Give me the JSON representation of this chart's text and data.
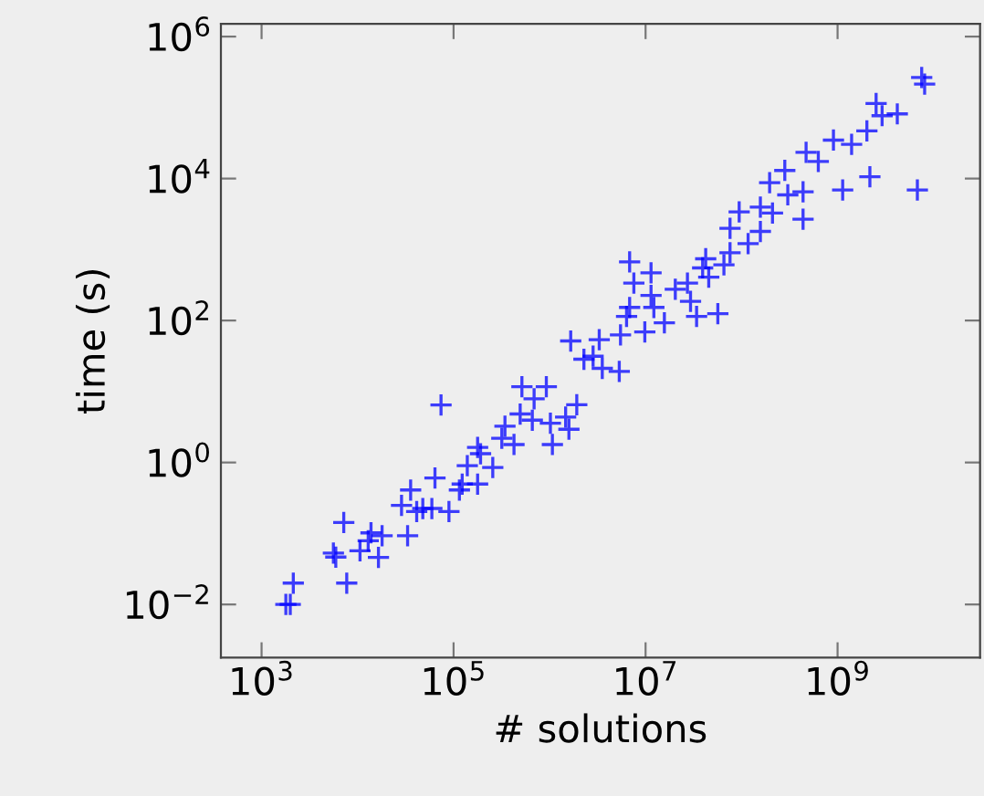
{
  "chart_data": {
    "type": "scatter",
    "xlabel": "# solutions",
    "ylabel": "time (s)",
    "log": "xy",
    "marker": "cross",
    "grid": false,
    "xlim": [
      377,
      30500000000.0
    ],
    "ylim": [
      0.00179,
      1510000.0
    ],
    "xticks": [
      {
        "value": 1000,
        "label": "10$^{3}$"
      },
      {
        "value": 100000,
        "label": "10$^{5}$"
      },
      {
        "value": 10000000,
        "label": "10$^{7}$"
      },
      {
        "value": 1000000000,
        "label": "10$^{9}$"
      }
    ],
    "yticks": [
      {
        "value": 0.01,
        "label": "10$^{−2}$"
      },
      {
        "value": 1,
        "label": "10$^{0}$"
      },
      {
        "value": 100,
        "label": "10$^{2}$"
      },
      {
        "value": 10000,
        "label": "10$^{4}$"
      },
      {
        "value": 1000000,
        "label": "10$^{6}$"
      }
    ],
    "series": [
      {
        "color": "#0000ff",
        "x": [
          1990,
          1790,
          2140,
          7710,
          5930,
          7180,
          5600,
          10600,
          12900,
          16500,
          18000,
          13800,
          28700,
          35700,
          33200,
          41300,
          47800,
          59400,
          89500,
          64000,
          74000,
          115000,
          123000,
          139000,
          178000,
          178000,
          191000,
          256000,
          318000,
          343000,
          426000,
          494000,
          515000,
          690000,
          925000,
          661000,
          1020000,
          1070000,
          1470000,
          1590000,
          1920000,
          1660000,
          2280000,
          2840000,
          3290000,
          3540000,
          5320000,
          5480000,
          6340000,
          6820000,
          7550000,
          6820000,
          9820000,
          11400000,
          11400000,
          12200000,
          15700000,
          20400000,
          27300000,
          29400000,
          34000000,
          39300000,
          42300000,
          56600000,
          45500000,
          65500000,
          75800000,
          117000000,
          75800000,
          94400000,
          157000000,
          157000000,
          196000000,
          210000000,
          282000000,
          303000000,
          437000000,
          437000000,
          470000000,
          630000000,
          906000000,
          1130000000,
          1400000000,
          2020000000,
          2170000000,
          2520000000,
          2910000000,
          4190000000,
          6780000000,
          7520000000,
          8070000000
        ],
        "values": [
          0.01,
          0.01,
          0.02,
          0.02,
          0.0465,
          0.143,
          0.053,
          0.057,
          0.079,
          0.046,
          0.093,
          0.102,
          0.249,
          0.41,
          0.093,
          0.204,
          0.225,
          0.225,
          0.204,
          0.605,
          6.47,
          0.41,
          0.497,
          0.9,
          0.497,
          1.63,
          1.33,
          0.85,
          2.19,
          3.25,
          1.79,
          4.82,
          11.7,
          7.9,
          11.7,
          3.95,
          3.58,
          1.79,
          4.36,
          2.94,
          6.5,
          51.5,
          28.5,
          31.4,
          53.6,
          21.2,
          19.2,
          62.8,
          114,
          671,
          336,
          153,
          69.2,
          470,
          226,
          153,
          93,
          276,
          336,
          186,
          114,
          551,
          741,
          125,
          409,
          608,
          902,
          1210,
          1990,
          3390,
          1800,
          3970,
          8750,
          3260,
          13000,
          5890,
          2670,
          6500,
          23400,
          17400,
          34800,
          6900,
          30300,
          46900,
          10600,
          114000,
          76800,
          81500,
          6900,
          266000,
          214000
        ]
      }
    ]
  }
}
